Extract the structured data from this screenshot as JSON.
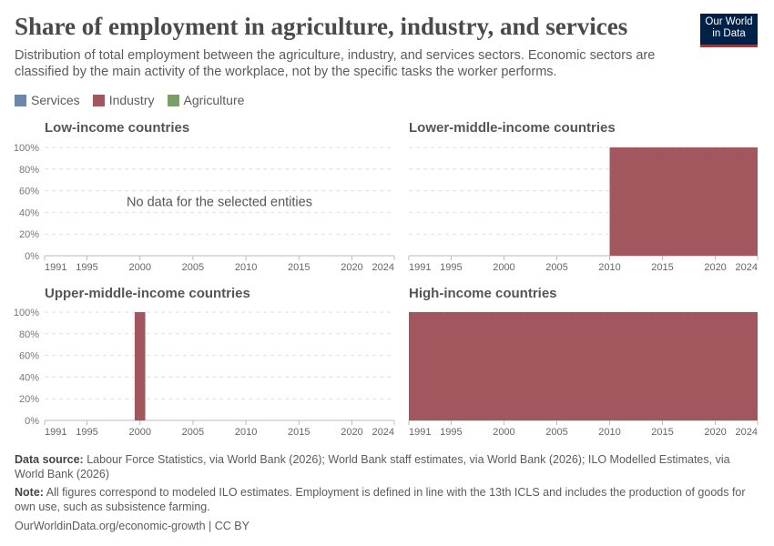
{
  "header": {
    "title": "Share of employment in agriculture, industry, and services",
    "subtitle": "Distribution of total employment between the agriculture, industry, and services sectors. Economic sectors are classified by the main activity of the workplace, not by the specific tasks the worker performs.",
    "logo": "Our World in Data"
  },
  "legend": [
    {
      "name": "Services",
      "color": "#6d87a8"
    },
    {
      "name": "Industry",
      "color": "#a2575e"
    },
    {
      "name": "Agriculture",
      "color": "#7c9e6a"
    }
  ],
  "chart_data": [
    {
      "type": "area",
      "title": "Low-income countries",
      "stacked": true,
      "xlim": [
        1991,
        2024
      ],
      "ylim": [
        0,
        100
      ],
      "x_ticks": [
        "1991",
        "1995",
        "2000",
        "2005",
        "2010",
        "2015",
        "2020",
        "2024"
      ],
      "y_ticks": [
        "0%",
        "20%",
        "40%",
        "60%",
        "80%",
        "100%"
      ],
      "grid": true,
      "series": [],
      "annotation": "No data for the selected entities"
    },
    {
      "type": "area",
      "title": "Lower-middle-income countries",
      "stacked": true,
      "xlim": [
        1991,
        2024
      ],
      "ylim": [
        0,
        100
      ],
      "x_ticks": [
        "1991",
        "1995",
        "2000",
        "2005",
        "2010",
        "2015",
        "2020",
        "2024"
      ],
      "grid": true,
      "series": [
        {
          "name": "Industry",
          "x": [
            2010,
            2024
          ],
          "values": [
            100,
            100
          ]
        }
      ]
    },
    {
      "type": "bar",
      "title": "Upper-middle-income countries",
      "stacked": true,
      "xlim": [
        1991,
        2024
      ],
      "ylim": [
        0,
        100
      ],
      "x_ticks": [
        "1991",
        "1995",
        "2000",
        "2005",
        "2010",
        "2015",
        "2020",
        "2024"
      ],
      "y_ticks": [
        "0%",
        "20%",
        "40%",
        "60%",
        "80%",
        "100%"
      ],
      "grid": true,
      "series": [
        {
          "name": "Industry",
          "x": [
            2000
          ],
          "values": [
            100
          ]
        }
      ]
    },
    {
      "type": "area",
      "title": "High-income countries",
      "stacked": true,
      "xlim": [
        1991,
        2024
      ],
      "ylim": [
        0,
        100
      ],
      "x_ticks": [
        "1991",
        "1995",
        "2000",
        "2005",
        "2010",
        "2015",
        "2020",
        "2024"
      ],
      "grid": true,
      "series": [
        {
          "name": "Industry",
          "x": [
            1991,
            2024
          ],
          "values": [
            100,
            100
          ]
        }
      ]
    }
  ],
  "footer": {
    "source_label": "Data source:",
    "source": "Labour Force Statistics, via World Bank (2026); World Bank staff estimates, via World Bank (2026); ILO Modelled Estimates, via World Bank (2026)",
    "note_label": "Note:",
    "note": "All figures correspond to modeled ILO estimates. Employment is defined in line with the 13th ICLS and includes the production of goods for own use, such as subsistence farming.",
    "url": "OurWorldinData.org/economic-growth | CC BY"
  }
}
